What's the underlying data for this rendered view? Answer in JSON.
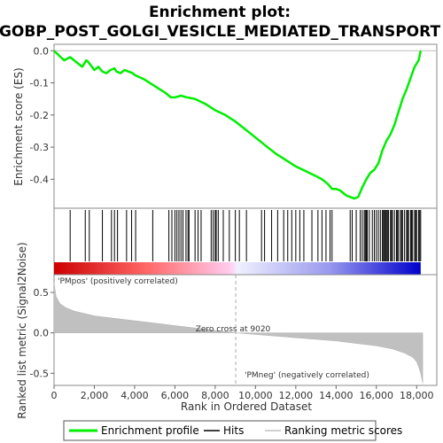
{
  "chart_data": {
    "type": "line",
    "title_line1": "Enrichment plot:",
    "title_line2": "GOBP_POST_GOLGI_VESICLE_MEDIATED_TRANSPORT",
    "top_panel": {
      "ylabel": "Enrichment score (ES)",
      "ylim": [
        -0.49,
        0.02
      ],
      "yticks": [
        0.0,
        -0.1,
        -0.2,
        -0.3,
        -0.4
      ],
      "ytick_labels": [
        "0.0",
        "-0.1",
        "-0.2",
        "-0.3",
        "-0.4"
      ],
      "series_name": "Enrichment profile",
      "line_color": "#00ee00",
      "x": [
        0,
        500,
        800,
        1100,
        1400,
        1600,
        1700,
        2000,
        2200,
        2400,
        2600,
        2800,
        3000,
        3100,
        3300,
        3500,
        3700,
        3900,
        4000,
        4500,
        5000,
        5500,
        5800,
        6000,
        6300,
        6600,
        7000,
        7500,
        8000,
        8500,
        9000,
        9500,
        10000,
        10500,
        11000,
        11500,
        12000,
        12500,
        13000,
        13300,
        13600,
        13800,
        14000,
        14200,
        14500,
        14700,
        14900,
        15100,
        15300,
        15500,
        15700,
        15900,
        16100,
        16300,
        16500,
        16700,
        16900,
        17100,
        17300,
        17500,
        17700,
        17900,
        18100,
        18200
      ],
      "y": [
        0.0,
        -0.03,
        -0.02,
        -0.035,
        -0.05,
        -0.03,
        -0.035,
        -0.06,
        -0.05,
        -0.065,
        -0.07,
        -0.06,
        -0.055,
        -0.065,
        -0.07,
        -0.06,
        -0.065,
        -0.07,
        -0.075,
        -0.09,
        -0.11,
        -0.13,
        -0.145,
        -0.145,
        -0.14,
        -0.145,
        -0.15,
        -0.165,
        -0.185,
        -0.2,
        -0.22,
        -0.245,
        -0.27,
        -0.295,
        -0.32,
        -0.34,
        -0.36,
        -0.375,
        -0.39,
        -0.4,
        -0.415,
        -0.43,
        -0.43,
        -0.435,
        -0.45,
        -0.455,
        -0.46,
        -0.455,
        -0.425,
        -0.4,
        -0.38,
        -0.37,
        -0.35,
        -0.31,
        -0.28,
        -0.26,
        -0.23,
        -0.19,
        -0.15,
        -0.12,
        -0.085,
        -0.05,
        -0.03,
        0.0
      ]
    },
    "hits_panel": {
      "x": [
        800,
        1550,
        1750,
        2400,
        2850,
        3000,
        3150,
        3600,
        3850,
        4050,
        4900,
        5700,
        5850,
        6000,
        6100,
        6200,
        6300,
        6400,
        6550,
        6650,
        6700,
        7000,
        7150,
        7300,
        7800,
        7900,
        8000,
        8050,
        8150,
        8400,
        8700,
        9000,
        9200,
        9550,
        10300,
        10450,
        10800,
        11100,
        11400,
        11600,
        11800,
        12000,
        12200,
        12400,
        12800,
        13100,
        13300,
        13500,
        13700,
        13800,
        14700,
        14800,
        15000,
        15200,
        15300,
        15400,
        15450,
        15500,
        15550,
        15650,
        15800,
        15900,
        16000,
        16100,
        16200,
        16300,
        16350,
        16400,
        16450,
        16500,
        16550,
        16600,
        16700,
        16750,
        16800,
        16900,
        17000,
        17050,
        17100,
        17200,
        17250,
        17300,
        17400,
        17500,
        17550,
        17600,
        17700,
        17750,
        17800,
        17900,
        17950,
        18000,
        18100,
        18150,
        18200
      ]
    },
    "rank_panel": {
      "ylabel": "Ranked list metric (Signal2Noise)",
      "xlabel": "Rank in Ordered Dataset",
      "ylim": [
        -0.65,
        0.72
      ],
      "yticks": [
        0.5,
        0.0,
        -0.5
      ],
      "ytick_labels": [
        "0.5",
        "0.0",
        "-0.5"
      ],
      "xlim": [
        0,
        19000
      ],
      "xticks": [
        0,
        2000,
        4000,
        6000,
        8000,
        10000,
        12000,
        14000,
        16000,
        18000
      ],
      "xtick_labels": [
        "0",
        "2,000",
        "4,000",
        "6,000",
        "8,000",
        "10,000",
        "12,000",
        "14,000",
        "16,000",
        "18,000"
      ],
      "metric_x": [
        0,
        100,
        300,
        600,
        1000,
        1500,
        2000,
        3000,
        4000,
        5000,
        6000,
        7000,
        8000,
        9020,
        10000,
        11000,
        12000,
        13000,
        14000,
        15000,
        16000,
        16800,
        17400,
        17800,
        18000,
        18100,
        18200,
        18300
      ],
      "metric_y": [
        0.62,
        0.45,
        0.36,
        0.31,
        0.27,
        0.24,
        0.21,
        0.18,
        0.15,
        0.12,
        0.09,
        0.06,
        0.03,
        0.0,
        -0.02,
        -0.04,
        -0.06,
        -0.08,
        -0.1,
        -0.13,
        -0.16,
        -0.2,
        -0.25,
        -0.3,
        -0.36,
        -0.42,
        -0.5,
        -0.62
      ],
      "annotation_zero_cross": "Zero cross at 9020",
      "zero_cross": 9020,
      "label_pos": "'PMpos' (positively correlated)",
      "label_neg": "'PMneg' (negatively correlated)",
      "color_pos": "#cc0000",
      "color_neg": "#0000cc"
    },
    "legend": {
      "placement": "bottom",
      "items": [
        {
          "label": "Enrichment profile",
          "color": "#00ee00"
        },
        {
          "label": "Hits",
          "color": "#000000"
        },
        {
          "label": "Ranking metric scores",
          "color": "#c0c0c0"
        }
      ]
    }
  }
}
